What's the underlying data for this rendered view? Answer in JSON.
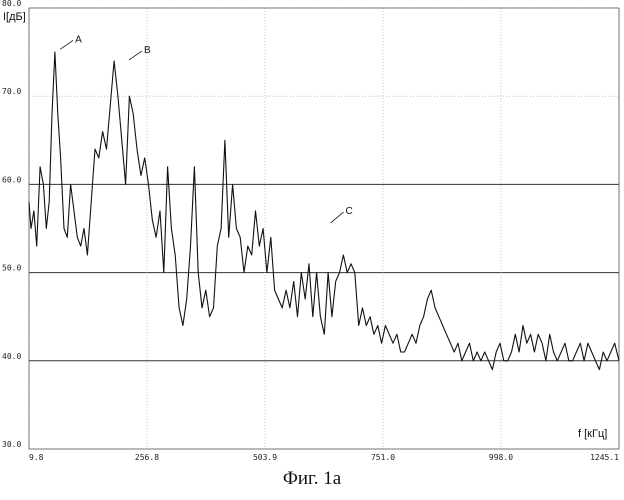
{
  "figure_caption": "Фиг. 1а",
  "chart_data": {
    "type": "line",
    "xlabel": "f [кГц]",
    "ylabel": "I[дБ]",
    "xlim": [
      9.8,
      1245.1
    ],
    "ylim": [
      30.0,
      80.0
    ],
    "x_ticks": [
      "9.8",
      "256.8",
      "503.9",
      "751.0",
      "998.0",
      "1245.1"
    ],
    "x_tick_values": [
      9.8,
      256.8,
      503.9,
      751.0,
      998.0,
      1245.1
    ],
    "y_ticks": [
      "30.0",
      "40.0",
      "50.0",
      "60.0",
      "70.0",
      "80.0"
    ],
    "y_tick_values": [
      30,
      40,
      50,
      60,
      70,
      80
    ],
    "grid": true,
    "line_color": "#111111",
    "grid_color": "#9a9a9a",
    "x": [
      9.8,
      14,
      20,
      26,
      33,
      40,
      46,
      52,
      58,
      64,
      70,
      76,
      83,
      90,
      97,
      104,
      111,
      118,
      125,
      132,
      140,
      148,
      156,
      164,
      172,
      180,
      188,
      196,
      204,
      212,
      220,
      228,
      236,
      244,
      252,
      260,
      268,
      276,
      284,
      292,
      300,
      308,
      316,
      324,
      332,
      340,
      348,
      356,
      364,
      372,
      380,
      388,
      396,
      404,
      412,
      420,
      428,
      436,
      444,
      452,
      460,
      468,
      476,
      484,
      492,
      500,
      508,
      516,
      524,
      532,
      540,
      548,
      556,
      564,
      572,
      580,
      588,
      596,
      604,
      612,
      620,
      628,
      636,
      644,
      652,
      660,
      668,
      676,
      684,
      692,
      700,
      708,
      716,
      724,
      732,
      740,
      748,
      756,
      764,
      772,
      780,
      788,
      796,
      804,
      812,
      820,
      828,
      836,
      844,
      852,
      860,
      868,
      876,
      884,
      892,
      900,
      908,
      916,
      924,
      932,
      940,
      948,
      956,
      964,
      972,
      980,
      988,
      996,
      1004,
      1012,
      1020,
      1028,
      1036,
      1044,
      1052,
      1060,
      1068,
      1076,
      1084,
      1092,
      1100,
      1108,
      1116,
      1124,
      1132,
      1140,
      1148,
      1156,
      1164,
      1172,
      1180,
      1188,
      1196,
      1204,
      1212,
      1220,
      1228,
      1236,
      1245.1
    ],
    "y": [
      58,
      55,
      57,
      53,
      62,
      60,
      55,
      58,
      68,
      75,
      68,
      63,
      55,
      54,
      60,
      57,
      54,
      53,
      55,
      52,
      58,
      64,
      63,
      66,
      64,
      69,
      74,
      70,
      65,
      60,
      70,
      68,
      64,
      61,
      63,
      60,
      56,
      54,
      57,
      50,
      62,
      55,
      52,
      46,
      44,
      47,
      53,
      62,
      50,
      46,
      48,
      45,
      46,
      53,
      55,
      65,
      54,
      60,
      55,
      54,
      50,
      53,
      52,
      57,
      53,
      55,
      50,
      54,
      48,
      47,
      46,
      48,
      46,
      49,
      45,
      50,
      47,
      51,
      45,
      50,
      45,
      43,
      50,
      45,
      49,
      50,
      52,
      50,
      51,
      50,
      44,
      46,
      44,
      45,
      43,
      44,
      42,
      44,
      43,
      42,
      43,
      41,
      41,
      42,
      43,
      42,
      44,
      45,
      47,
      48,
      46,
      45,
      44,
      43,
      42,
      41,
      42,
      40,
      41,
      42,
      40,
      41,
      40,
      41,
      40,
      39,
      41,
      42,
      40,
      40,
      41,
      43,
      41,
      44,
      42,
      43,
      41,
      43,
      42,
      40,
      43,
      41,
      40,
      41,
      42,
      40,
      40,
      41,
      42,
      40,
      42,
      41,
      40,
      39,
      41,
      40,
      41,
      42,
      40
    ],
    "annotations": [
      {
        "label": "A",
        "x": 73,
        "y": 75.2
      },
      {
        "label": "B",
        "x": 217,
        "y": 74.0
      },
      {
        "label": "C",
        "x": 639,
        "y": 55.5
      }
    ]
  }
}
